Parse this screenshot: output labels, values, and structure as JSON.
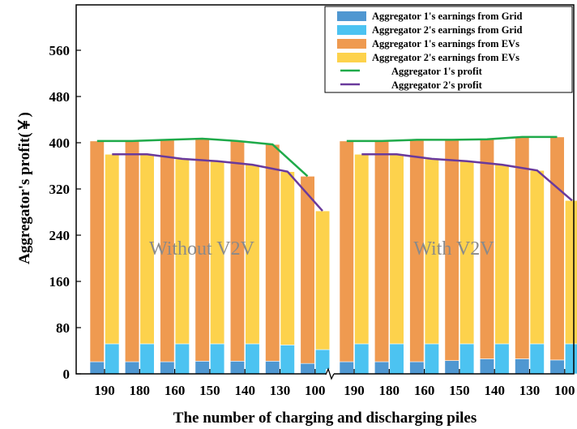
{
  "chart_data": {
    "type": "bar",
    "xlabel": "The number of charging and discharging piles",
    "ylabel": "Aggregator's profit(￥)",
    "ylim": [
      0,
      640
    ],
    "yticks": [
      0,
      80,
      160,
      240,
      320,
      400,
      480,
      560
    ],
    "colors": {
      "grid1": "#4f97d1",
      "grid2": "#4cc3f1",
      "evs1": "#ef9a50",
      "evs2": "#fdd24c",
      "profit1": "#1faa4a",
      "profit2": "#6a3a9c"
    },
    "legend": [
      "Aggregator 1's earnings from Grid",
      "Aggregator 2's earnings from Grid",
      "Aggregator 1's earnings from EVs",
      "Aggregator 2's earnings from EVs",
      "Aggregator 1's profit",
      "Aggregator 2's profit"
    ],
    "panels": [
      {
        "annotation": "Without V2V",
        "categories": [
          "190",
          "180",
          "160",
          "150",
          "140",
          "130",
          "100"
        ],
        "grid1": [
          21,
          21,
          21,
          22,
          22,
          22,
          18
        ],
        "grid2": [
          52,
          52,
          52,
          52,
          52,
          50,
          42
        ],
        "evs1": [
          382,
          382,
          384,
          385,
          381,
          375,
          324
        ],
        "evs2": [
          328,
          328,
          320,
          316,
          310,
          300,
          240
        ],
        "profit1": [
          403,
          403,
          405,
          407,
          403,
          397,
          342
        ],
        "profit2": [
          380,
          380,
          372,
          368,
          362,
          350,
          282
        ]
      },
      {
        "annotation": "With V2V",
        "categories": [
          "190",
          "180",
          "160",
          "150",
          "140",
          "130",
          "100"
        ],
        "grid1": [
          21,
          21,
          21,
          23,
          26,
          26,
          24
        ],
        "grid2": [
          52,
          52,
          52,
          52,
          52,
          52,
          52
        ],
        "evs1": [
          382,
          382,
          384,
          382,
          380,
          384,
          386
        ],
        "evs2": [
          328,
          328,
          320,
          316,
          310,
          300,
          248
        ],
        "profit1": [
          403,
          403,
          405,
          405,
          406,
          410,
          410
        ],
        "profit2": [
          380,
          380,
          372,
          368,
          362,
          352,
          300
        ]
      }
    ]
  }
}
